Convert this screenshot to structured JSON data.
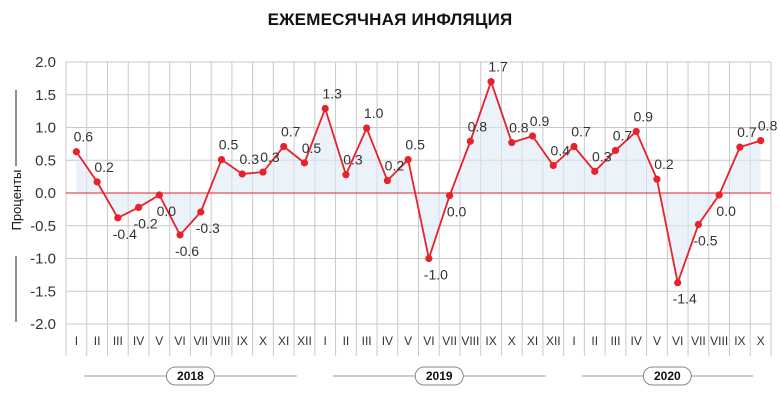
{
  "chart_data": {
    "type": "line",
    "title": "ЕЖЕМЕСЯЧНАЯ ИНФЛЯЦИЯ",
    "ylabel": "Проценты",
    "ylim": [
      -2.0,
      2.0
    ],
    "yticks": [
      "2.0",
      "1.5",
      "1.0",
      "0.5",
      "0.0",
      "-0.5",
      "-1.0",
      "-1.5",
      "-2.0"
    ],
    "grid": true,
    "categories": [
      "I",
      "II",
      "III",
      "IV",
      "V",
      "VI",
      "VII",
      "VIII",
      "IX",
      "X",
      "XI",
      "XII",
      "I",
      "II",
      "III",
      "IV",
      "V",
      "VI",
      "VII",
      "VIII",
      "IX",
      "X",
      "XI",
      "XII",
      "I",
      "II",
      "III",
      "IV",
      "V",
      "VI",
      "VII",
      "VIII",
      "IX",
      "X"
    ],
    "years": [
      {
        "label": "2018",
        "start": 0,
        "end": 11
      },
      {
        "label": "2019",
        "start": 12,
        "end": 23
      },
      {
        "label": "2020",
        "start": 24,
        "end": 33
      }
    ],
    "values": [
      0.63,
      0.17,
      -0.38,
      -0.22,
      -0.03,
      -0.64,
      -0.29,
      0.51,
      0.29,
      0.32,
      0.71,
      0.46,
      1.29,
      0.28,
      0.99,
      0.19,
      0.51,
      -1.0,
      -0.04,
      0.79,
      1.7,
      0.77,
      0.87,
      0.42,
      0.71,
      0.33,
      0.65,
      0.94,
      0.21,
      -1.37,
      -0.48,
      -0.03,
      0.7,
      0.8
    ],
    "labels": [
      "0.6",
      "0.2",
      "-0.4",
      "-0.2",
      "0.0",
      "-0.6",
      "-0.3",
      "0.5",
      "0.3",
      "0.3",
      "0.7",
      "0.5",
      "1.3",
      "0.3",
      "1.0",
      "0.2",
      "0.5",
      "-1.0",
      "0.0",
      "0.8",
      "1.7",
      "0.8",
      "0.9",
      "0.4",
      "0.7",
      "0.3",
      "0.7",
      "0.9",
      "0.2",
      "-1.4",
      "-0.5",
      "0.0",
      "0.7",
      "0.8"
    ],
    "colors": {
      "line": "#e8212b",
      "point": "#e8212b",
      "fill": "#ddeaf5",
      "zero": "#e8212b",
      "grid": "#c9c9c9"
    }
  }
}
